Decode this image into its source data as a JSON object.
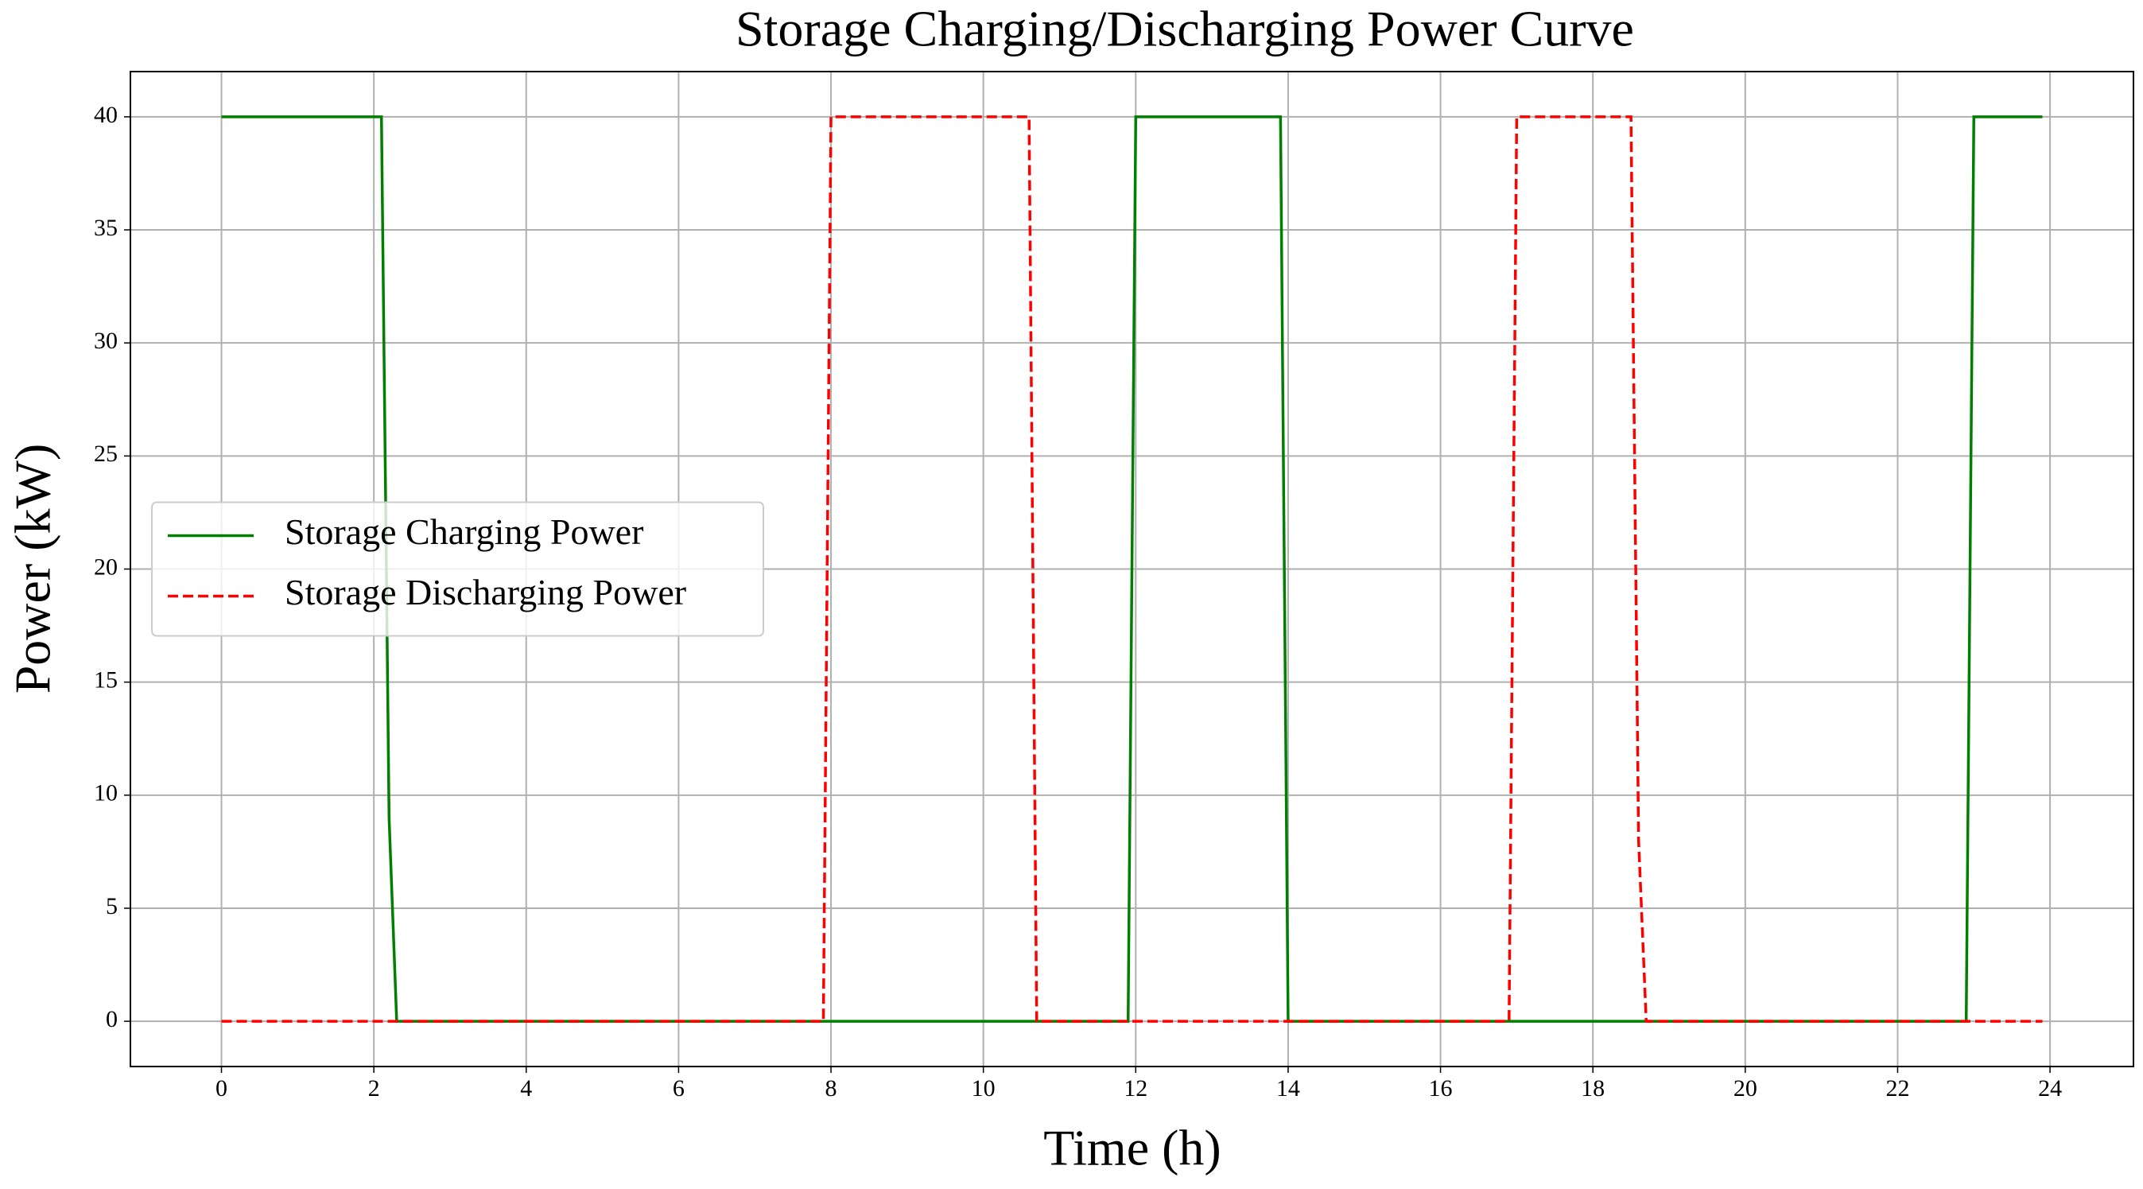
{
  "chart_data": {
    "type": "line",
    "title": "Storage Charging/Discharging Power Curve",
    "x_label": "Time (h)",
    "y_label": "Power (kW)",
    "series": [
      {
        "name": "Storage Charging Power",
        "color": "#008000",
        "dash": "solid",
        "x": [
          0,
          2.1,
          2.2,
          2.3,
          11.9,
          12.0,
          13.9,
          14.0,
          22.9,
          23.0,
          23.9
        ],
        "values": [
          40,
          40,
          9,
          0,
          0,
          40,
          40,
          0,
          0,
          40,
          40
        ]
      },
      {
        "name": "Storage Discharging Power",
        "color": "#ff0000",
        "dash": "dashed",
        "x": [
          0,
          7.9,
          8.0,
          10.6,
          10.7,
          16.9,
          17.0,
          18.5,
          18.6,
          18.7,
          23.9
        ],
        "values": [
          0,
          0,
          40,
          40,
          0,
          0,
          40,
          40,
          8,
          0,
          0
        ]
      }
    ],
    "xlim": [
      -1.195,
      25.095
    ],
    "xticks": [
      0,
      2,
      4,
      6,
      8,
      10,
      12,
      14,
      16,
      18,
      20,
      22,
      24
    ],
    "ylim": [
      -2,
      42
    ],
    "yticks": [
      0,
      5,
      10,
      15,
      20,
      25,
      30,
      35,
      40
    ],
    "grid": true,
    "legend": "center left"
  }
}
